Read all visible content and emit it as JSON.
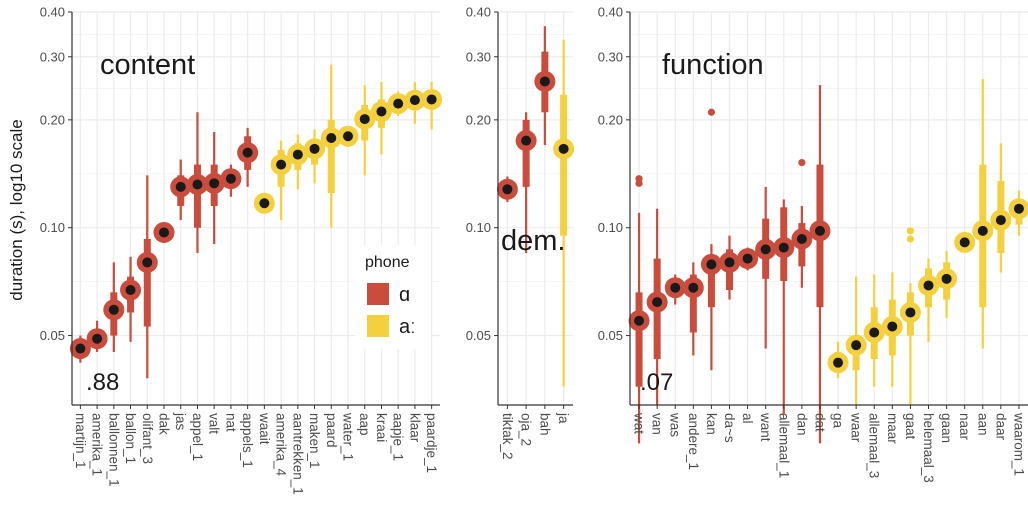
{
  "chart_data": {
    "type": "scatter",
    "ylabel": "duration (s), log10 scale",
    "yscale": "log10",
    "ylim": [
      0.032,
      0.4
    ],
    "yticks": [
      0.05,
      0.1,
      0.2,
      0.3,
      0.4
    ],
    "ytick_labels": [
      "0.05",
      "0.10",
      "0.20",
      "0.30",
      "0.40"
    ],
    "grid": true,
    "colors": {
      "ɑ": "#c94c3c",
      "aː": "#f4d03f",
      "point": "#1a1a1a"
    },
    "legend": {
      "title": "phone",
      "entries": [
        "ɑ",
        "aː"
      ],
      "placement": "inside-right"
    },
    "panels": [
      {
        "label": "content",
        "annotation": ".88",
        "items": [
          {
            "word": "martijn_1",
            "phone": "ɑ",
            "median": 0.046,
            "q1": 0.044,
            "q3": 0.048,
            "lo": 0.042,
            "hi": 0.05
          },
          {
            "word": "amerika_1",
            "phone": "ɑ",
            "median": 0.049,
            "q1": 0.047,
            "q3": 0.052,
            "lo": 0.045,
            "hi": 0.055
          },
          {
            "word": "ballonnen_1",
            "phone": "ɑ",
            "median": 0.059,
            "q1": 0.05,
            "q3": 0.066,
            "lo": 0.045,
            "hi": 0.08
          },
          {
            "word": "ballon_1",
            "phone": "ɑ",
            "median": 0.067,
            "q1": 0.058,
            "q3": 0.073,
            "lo": 0.048,
            "hi": 0.083
          },
          {
            "word": "olifant_3",
            "phone": "ɑ",
            "median": 0.08,
            "q1": 0.053,
            "q3": 0.093,
            "lo": 0.038,
            "hi": 0.14
          },
          {
            "word": "dak",
            "phone": "ɑ",
            "median": 0.097,
            "q1": 0.094,
            "q3": 0.1,
            "lo": 0.092,
            "hi": 0.103
          },
          {
            "word": "jas",
            "phone": "ɑ",
            "median": 0.13,
            "q1": 0.115,
            "q3": 0.14,
            "lo": 0.105,
            "hi": 0.155
          },
          {
            "word": "appel_1",
            "phone": "ɑ",
            "median": 0.132,
            "q1": 0.1,
            "q3": 0.15,
            "lo": 0.085,
            "hi": 0.21
          },
          {
            "word": "valt",
            "phone": "ɑ",
            "median": 0.133,
            "q1": 0.115,
            "q3": 0.15,
            "lo": 0.09,
            "hi": 0.185
          },
          {
            "word": "nat",
            "phone": "ɑ",
            "median": 0.137,
            "q1": 0.13,
            "q3": 0.145,
            "lo": 0.122,
            "hi": 0.15
          },
          {
            "word": "appels_1",
            "phone": "ɑ",
            "median": 0.162,
            "q1": 0.145,
            "q3": 0.18,
            "lo": 0.13,
            "hi": 0.19
          },
          {
            "word": "waait",
            "phone": "aː",
            "median": 0.117,
            "q1": 0.115,
            "q3": 0.12,
            "lo": 0.112,
            "hi": 0.123
          },
          {
            "word": "amerika_4",
            "phone": "aː",
            "median": 0.15,
            "q1": 0.13,
            "q3": 0.165,
            "lo": 0.105,
            "hi": 0.175
          },
          {
            "word": "aantrekken_1",
            "phone": "aː",
            "median": 0.16,
            "q1": 0.145,
            "q3": 0.172,
            "lo": 0.128,
            "hi": 0.182
          },
          {
            "word": "maken_1",
            "phone": "aː",
            "median": 0.166,
            "q1": 0.15,
            "q3": 0.175,
            "lo": 0.133,
            "hi": 0.188
          },
          {
            "word": "paard",
            "phone": "aː",
            "median": 0.178,
            "q1": 0.125,
            "q3": 0.2,
            "lo": 0.1,
            "hi": 0.285
          },
          {
            "word": "water_1",
            "phone": "aː",
            "median": 0.18,
            "q1": 0.175,
            "q3": 0.186,
            "lo": 0.168,
            "hi": 0.192
          },
          {
            "word": "aap",
            "phone": "aː",
            "median": 0.201,
            "q1": 0.175,
            "q3": 0.22,
            "lo": 0.14,
            "hi": 0.25
          },
          {
            "word": "kraai",
            "phone": "aː",
            "median": 0.211,
            "q1": 0.19,
            "q3": 0.228,
            "lo": 0.16,
            "hi": 0.255
          },
          {
            "word": "aapje_1",
            "phone": "aː",
            "median": 0.222,
            "q1": 0.215,
            "q3": 0.23,
            "lo": 0.205,
            "hi": 0.24
          },
          {
            "word": "klaar",
            "phone": "aː",
            "median": 0.227,
            "q1": 0.215,
            "q3": 0.238,
            "lo": 0.195,
            "hi": 0.255
          },
          {
            "word": "paardje_1",
            "phone": "aː",
            "median": 0.228,
            "q1": 0.215,
            "q3": 0.24,
            "lo": 0.188,
            "hi": 0.255
          }
        ]
      },
      {
        "label": "dem.",
        "annotation": "",
        "items": [
          {
            "word": "tiktak_2",
            "phone": "ɑ",
            "median": 0.128,
            "q1": 0.123,
            "q3": 0.134,
            "lo": 0.118,
            "hi": 0.139
          },
          {
            "word": "oja_2",
            "phone": "ɑ",
            "median": 0.175,
            "q1": 0.13,
            "q3": 0.2,
            "lo": 0.085,
            "hi": 0.21
          },
          {
            "word": "bah",
            "phone": "ɑ",
            "median": 0.256,
            "q1": 0.21,
            "q3": 0.31,
            "lo": 0.17,
            "hi": 0.365
          },
          {
            "word": "ja",
            "phone": "aː",
            "median": 0.166,
            "q1": 0.095,
            "q3": 0.235,
            "lo": 0.036,
            "hi": 0.335
          }
        ]
      },
      {
        "label": "function",
        "annotation": ".07",
        "items": [
          {
            "word": "wat",
            "phone": "ɑ",
            "median": 0.055,
            "q1": 0.036,
            "q3": 0.066,
            "lo": 0.025,
            "hi": 0.11,
            "outliers": [
              0.133,
              0.137
            ]
          },
          {
            "word": "van",
            "phone": "ɑ",
            "median": 0.062,
            "q1": 0.043,
            "q3": 0.082,
            "lo": 0.032,
            "hi": 0.113
          },
          {
            "word": "was",
            "phone": "ɑ",
            "median": 0.068,
            "q1": 0.064,
            "q3": 0.071,
            "lo": 0.061,
            "hi": 0.074
          },
          {
            "word": "andere_1",
            "phone": "ɑ",
            "median": 0.068,
            "q1": 0.051,
            "q3": 0.074,
            "lo": 0.044,
            "hi": 0.08
          },
          {
            "word": "kan",
            "phone": "ɑ",
            "median": 0.079,
            "q1": 0.06,
            "q3": 0.084,
            "lo": 0.04,
            "hi": 0.09,
            "outliers": [
              0.21
            ]
          },
          {
            "word": "da~s",
            "phone": "ɑ",
            "median": 0.08,
            "q1": 0.067,
            "q3": 0.087,
            "lo": 0.063,
            "hi": 0.095
          },
          {
            "word": "al",
            "phone": "ɑ",
            "median": 0.082,
            "q1": 0.079,
            "q3": 0.085,
            "lo": 0.076,
            "hi": 0.088
          },
          {
            "word": "want",
            "phone": "ɑ",
            "median": 0.087,
            "q1": 0.072,
            "q3": 0.106,
            "lo": 0.046,
            "hi": 0.13
          },
          {
            "word": "allemaal_1",
            "phone": "ɑ",
            "median": 0.088,
            "q1": 0.071,
            "q3": 0.114,
            "lo": 0.03,
            "hi": 0.12
          },
          {
            "word": "dan",
            "phone": "ɑ",
            "median": 0.093,
            "q1": 0.078,
            "q3": 0.103,
            "lo": 0.068,
            "hi": 0.115,
            "outliers": [
              0.152
            ]
          },
          {
            "word": "dat",
            "phone": "ɑ",
            "median": 0.098,
            "q1": 0.06,
            "q3": 0.15,
            "lo": 0.025,
            "hi": 0.25
          },
          {
            "word": "ga",
            "phone": "aː",
            "median": 0.042,
            "q1": 0.04,
            "q3": 0.045,
            "lo": 0.038,
            "hi": 0.048
          },
          {
            "word": "waar",
            "phone": "aː",
            "median": 0.047,
            "q1": 0.04,
            "q3": 0.05,
            "lo": 0.032,
            "hi": 0.073
          },
          {
            "word": "allemaal_3",
            "phone": "aː",
            "median": 0.051,
            "q1": 0.043,
            "q3": 0.06,
            "lo": 0.036,
            "hi": 0.074
          },
          {
            "word": "maar",
            "phone": "aː",
            "median": 0.053,
            "q1": 0.044,
            "q3": 0.063,
            "lo": 0.036,
            "hi": 0.075
          },
          {
            "word": "gaat",
            "phone": "aː",
            "median": 0.058,
            "q1": 0.05,
            "q3": 0.066,
            "lo": 0.032,
            "hi": 0.07,
            "outliers": [
              0.093,
              0.098
            ]
          },
          {
            "word": "helemaal_3",
            "phone": "aː",
            "median": 0.069,
            "q1": 0.06,
            "q3": 0.077,
            "lo": 0.048,
            "hi": 0.082
          },
          {
            "word": "gaan",
            "phone": "aː",
            "median": 0.072,
            "q1": 0.063,
            "q3": 0.08,
            "lo": 0.056,
            "hi": 0.086
          },
          {
            "word": "naar",
            "phone": "aː",
            "median": 0.091,
            "q1": 0.089,
            "q3": 0.093,
            "lo": 0.087,
            "hi": 0.095
          },
          {
            "word": "aan",
            "phone": "aː",
            "median": 0.098,
            "q1": 0.06,
            "q3": 0.15,
            "lo": 0.046,
            "hi": 0.26
          },
          {
            "word": "daar",
            "phone": "aː",
            "median": 0.105,
            "q1": 0.085,
            "q3": 0.135,
            "lo": 0.075,
            "hi": 0.172
          },
          {
            "word": "waarom_1",
            "phone": "aː",
            "median": 0.113,
            "q1": 0.102,
            "q3": 0.12,
            "lo": 0.095,
            "hi": 0.127
          }
        ]
      }
    ]
  }
}
